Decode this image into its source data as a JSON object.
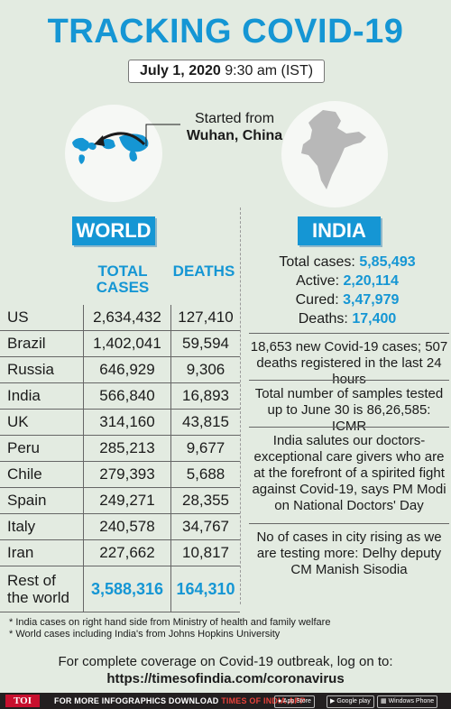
{
  "title": "TRACKING COVID-19",
  "date": {
    "day": "July 1, 2020",
    "time": "9:30 am (IST)"
  },
  "origin": {
    "line1": "Started from",
    "city": "Wuhan, China"
  },
  "world": {
    "label": "WORLD",
    "col_cases": "TOTAL CASES",
    "col_deaths": "DEATHS",
    "rows": [
      {
        "country": "US",
        "cases": "2,634,432",
        "deaths": "127,410"
      },
      {
        "country": "Brazil",
        "cases": "1,402,041",
        "deaths": "59,594"
      },
      {
        "country": "Russia",
        "cases": "646,929",
        "deaths": "9,306"
      },
      {
        "country": "India",
        "cases": "566,840",
        "deaths": "16,893"
      },
      {
        "country": "UK",
        "cases": "314,160",
        "deaths": "43,815"
      },
      {
        "country": "Peru",
        "cases": "285,213",
        "deaths": "9,677"
      },
      {
        "country": "Chile",
        "cases": "279,393",
        "deaths": "5,688"
      },
      {
        "country": "Spain",
        "cases": "249,271",
        "deaths": "28,355"
      },
      {
        "country": "Italy",
        "cases": "240,578",
        "deaths": "34,767"
      },
      {
        "country": "Iran",
        "cases": "227,662",
        "deaths": "10,817"
      }
    ],
    "rest": {
      "country_line1": "Rest of",
      "country_line2": "the world",
      "cases": "3,588,316",
      "deaths": "164,310"
    }
  },
  "india": {
    "label": "INDIA",
    "total_label": "Total cases:",
    "total": "5,85,493",
    "active_label": "Active:",
    "active": "2,20,114",
    "cured_label": "Cured:",
    "cured": "3,47,979",
    "deaths_label": "Deaths:",
    "deaths": "17,400",
    "facts": [
      "18,653 new Covid-19 cases; 507 deaths registered in the last 24 hours",
      "Total number of samples tested up to June 30 is 86,26,585: ICMR",
      "India salutes our doctors- exceptional care givers who are at the forefront of a spirited fight against Covid-19, says PM Modi on National Doctors' Day",
      "No of cases in city rising as we are testing more: Delhy deputy CM Manish Sisodia"
    ]
  },
  "notes": [
    "* India cases on right hand side from Ministry of health and family welfare",
    "* World cases including India's from Johns Hopkins University"
  ],
  "coverage": {
    "line1": "For complete coverage on Covid-19 outbreak, log on to:",
    "url": "https://timesofindia.com/coronavirus"
  },
  "footer": {
    "brand": "TOI",
    "promo": "FOR MORE INFOGRAPHICS DOWNLOAD",
    "app": "TIMES OF INDIA APP",
    "stores": [
      "App Store",
      "Google play",
      "Windows Phone"
    ]
  },
  "colors": {
    "accent": "#1596d4",
    "background": "#e3ebe1",
    "footer": "#231f20",
    "brand_red": "#c8102e"
  },
  "icons": [
    "world-map-icon",
    "india-map-icon",
    "spread-arrow-icon",
    "apple-icon",
    "play-icon",
    "windows-icon"
  ]
}
